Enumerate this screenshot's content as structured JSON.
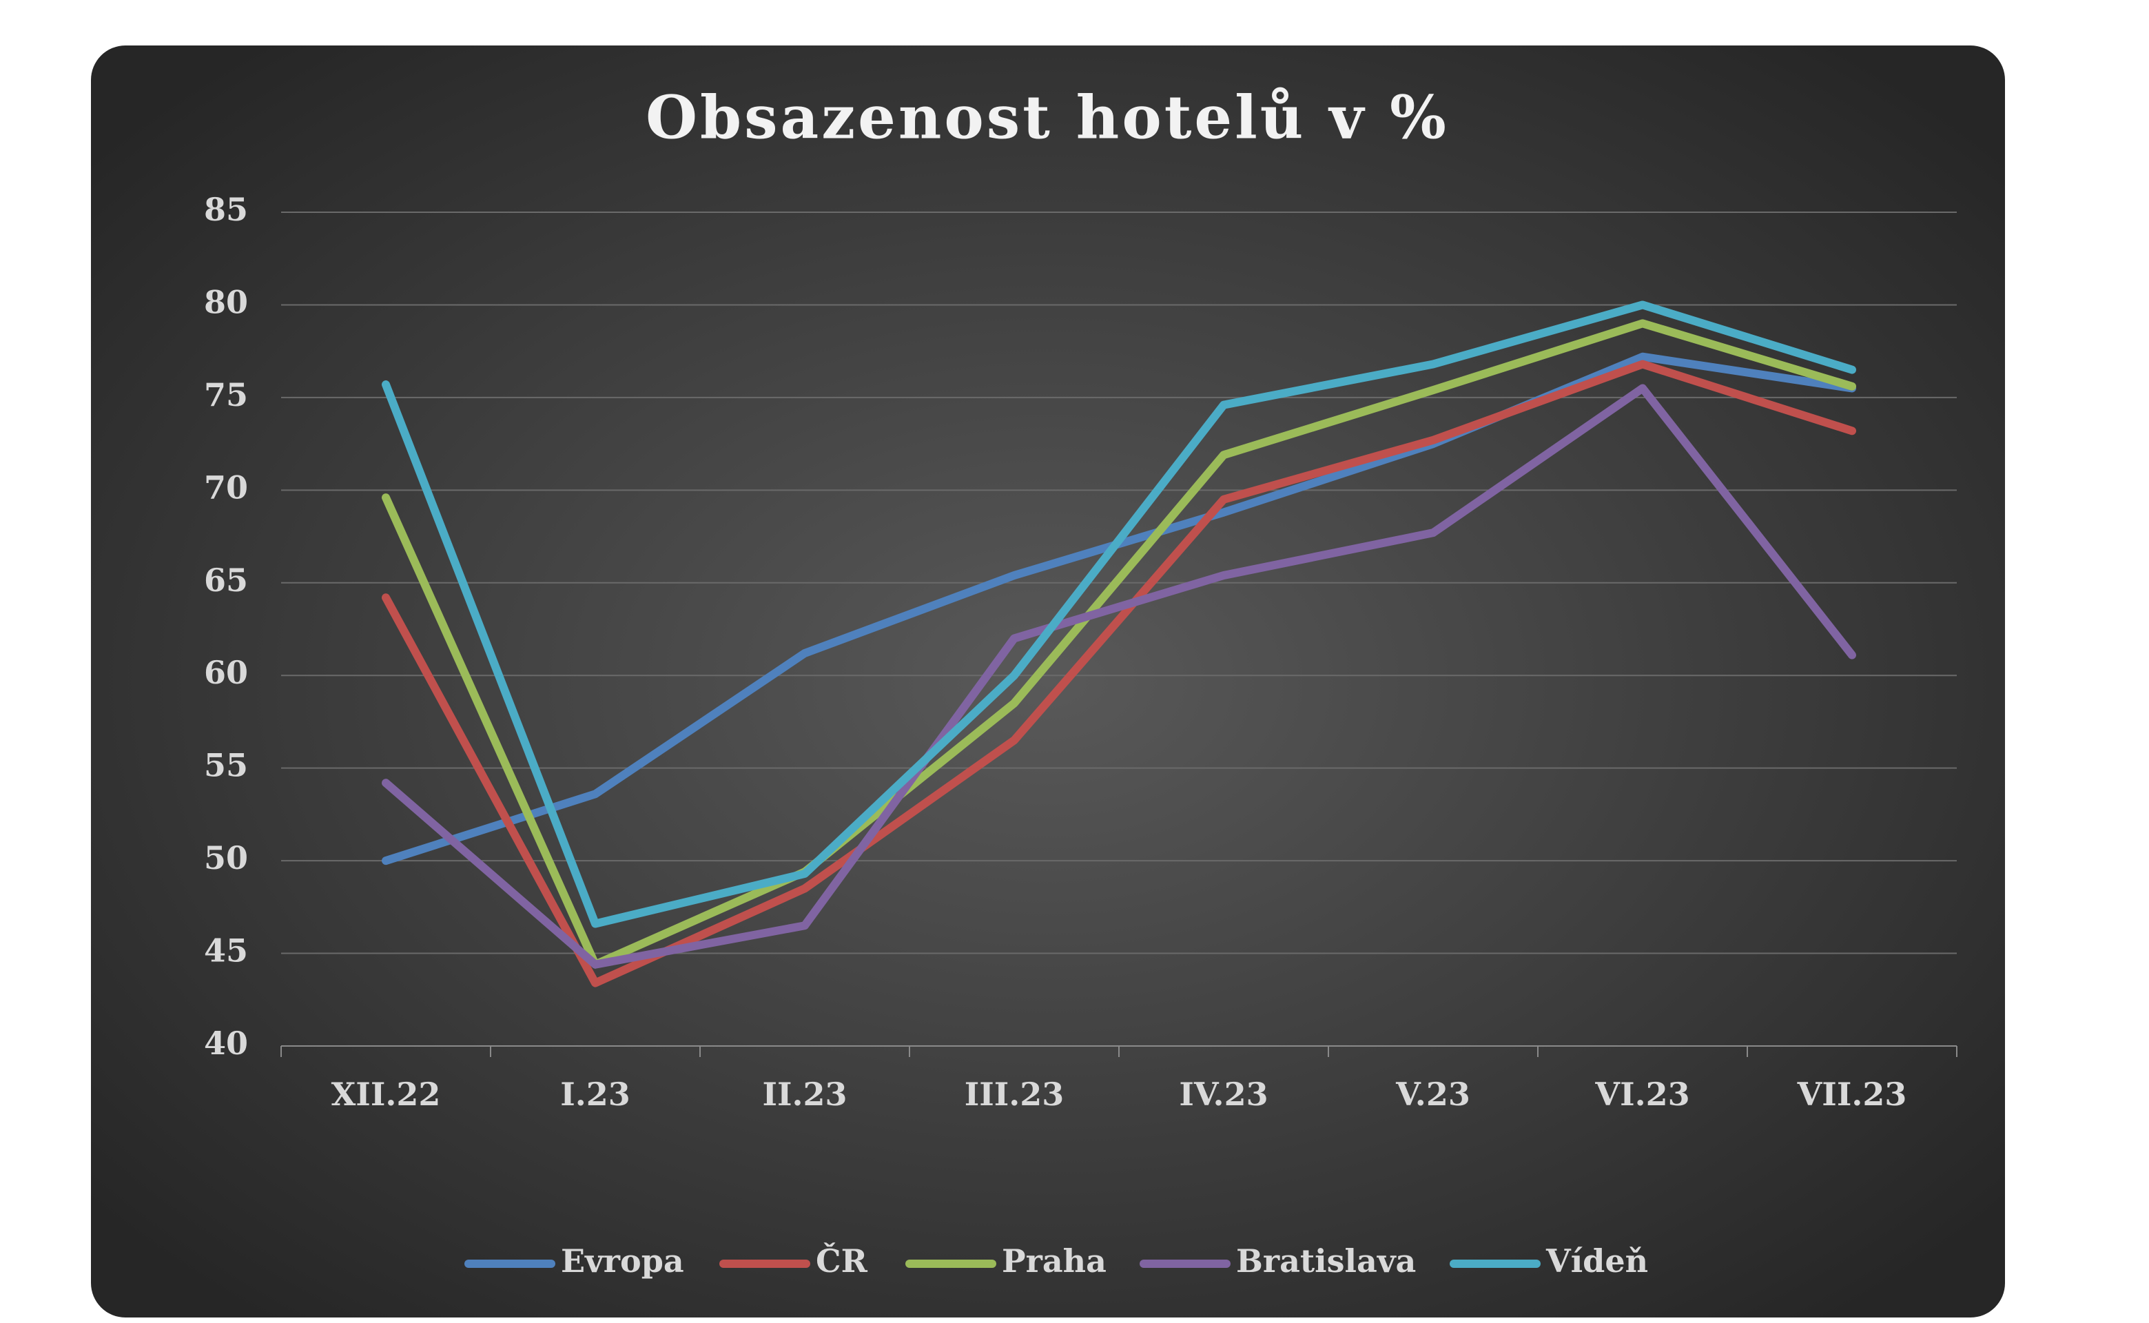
{
  "chart_data": {
    "type": "line",
    "title": "Obsazenost hotelů v %",
    "categories": [
      "XII.22",
      "I.23",
      "II.23",
      "III.23",
      "IV.23",
      "V.23",
      "VI.23",
      "VII.23"
    ],
    "series": [
      {
        "name": "Evropa",
        "color": "#4f81bd",
        "values": [
          50.0,
          53.6,
          61.2,
          65.4,
          68.8,
          72.5,
          77.2,
          75.5
        ]
      },
      {
        "name": "ČR",
        "color": "#c0504d",
        "values": [
          64.2,
          43.4,
          48.5,
          56.5,
          69.5,
          72.7,
          76.8,
          73.2
        ]
      },
      {
        "name": "Praha",
        "color": "#9bbb59",
        "values": [
          69.6,
          44.4,
          49.4,
          58.5,
          71.9,
          75.4,
          79.0,
          75.6
        ]
      },
      {
        "name": "Bratislava",
        "color": "#8064a2",
        "values": [
          54.2,
          44.4,
          46.5,
          62.0,
          65.4,
          67.7,
          75.5,
          61.1
        ]
      },
      {
        "name": "Vídeň",
        "color": "#4bacc6",
        "values": [
          75.7,
          46.6,
          49.3,
          60.0,
          74.6,
          76.8,
          80.0,
          76.5
        ]
      }
    ],
    "ylim": [
      40,
      85
    ],
    "yticks": [
      40,
      45,
      50,
      55,
      60,
      65,
      70,
      75,
      80,
      85
    ],
    "grid": true,
    "legend": "bottom"
  }
}
